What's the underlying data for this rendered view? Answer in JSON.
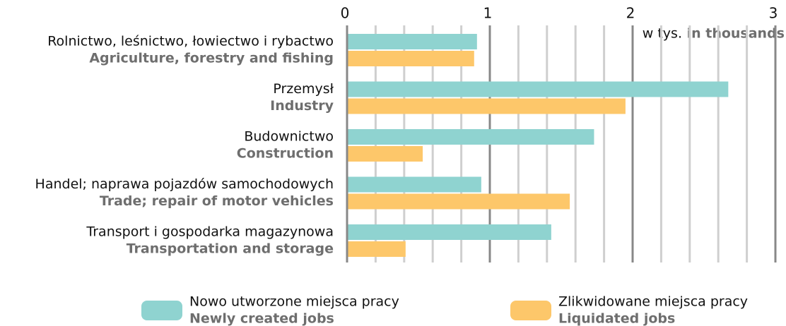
{
  "chart_data": {
    "type": "bar",
    "orientation": "horizontal",
    "unit": "w tys.",
    "unit_en": "in thousands",
    "categories": [
      "Rolnictwo, leśnictwo, łowiectwo i rybactwo",
      "Przemysł",
      "Budownictwo",
      "Handel;  naprawa pojazdów samochodowych",
      "Transport i gospodarka magazynowa"
    ],
    "categories_en": [
      "Agriculture, forestry and fishing",
      "Industry",
      "Construction",
      "Trade; repair of motor vehicles",
      "Transportation and storage"
    ],
    "series": [
      {
        "name": "Nowo utworzone miejsca pracy",
        "name_en": "Newly created jobs",
        "color": "#8fd3d0",
        "values": [
          0.91,
          2.67,
          1.73,
          0.94,
          1.43
        ]
      },
      {
        "name": "Zlikwidowane miejsca pracy",
        "name_en": "Liquidated jobs",
        "color": "#fdc76a",
        "values": [
          0.89,
          1.95,
          0.53,
          1.56,
          0.41
        ]
      }
    ],
    "xlim": [
      0,
      3
    ],
    "xticks": [
      0,
      1,
      2,
      3
    ],
    "xgrid_minor": [
      0.2,
      0.4,
      0.6,
      0.8,
      1.2,
      1.4,
      1.6,
      1.8,
      2.2,
      2.4,
      2.6,
      2.8
    ],
    "grid": true
  }
}
